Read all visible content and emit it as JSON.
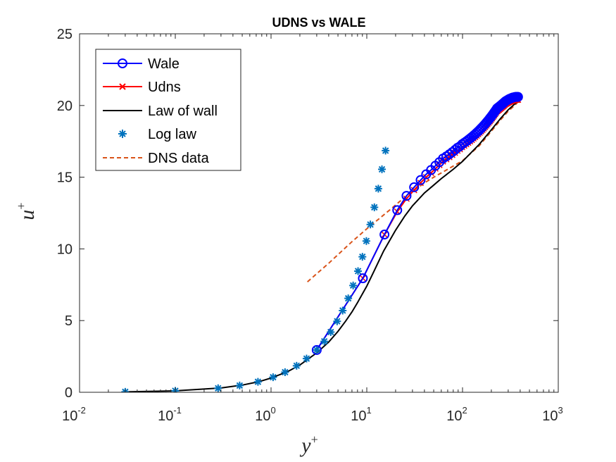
{
  "chart_data": {
    "type": "line",
    "title": "UDNS vs WALE",
    "xlabel": "y",
    "xlabel_sup": "+",
    "ylabel": "u",
    "ylabel_sup": "+",
    "xscale": "log",
    "xlim": [
      0.01,
      1000
    ],
    "ylim": [
      0,
      25
    ],
    "xticks": [
      {
        "base": "10",
        "exp": "-2",
        "value": 0.01
      },
      {
        "base": "10",
        "exp": "-1",
        "value": 0.1
      },
      {
        "base": "10",
        "exp": "0",
        "value": 1
      },
      {
        "base": "10",
        "exp": "1",
        "value": 10
      },
      {
        "base": "10",
        "exp": "2",
        "value": 100
      },
      {
        "base": "10",
        "exp": "3",
        "value": 1000
      }
    ],
    "yticks": [
      "0",
      "5",
      "10",
      "15",
      "20",
      "25"
    ],
    "grid": false,
    "legend_position": "top-left",
    "series": [
      {
        "name": "Wale",
        "style": "line-circle",
        "color": "#0000FF",
        "points": [
          [
            3.0,
            2.95
          ],
          [
            9.1,
            7.95
          ],
          [
            15.3,
            11.0
          ],
          [
            20.8,
            12.7
          ],
          [
            26.0,
            13.7
          ],
          [
            31.2,
            14.3
          ],
          [
            36.5,
            14.8
          ],
          [
            41.7,
            15.2
          ],
          [
            46.9,
            15.5
          ],
          [
            52.1,
            15.8
          ],
          [
            57.3,
            16.05
          ],
          [
            62.5,
            16.3
          ],
          [
            67.7,
            16.45
          ],
          [
            72.9,
            16.6
          ],
          [
            78.1,
            16.75
          ],
          [
            83.3,
            16.9
          ],
          [
            88.5,
            17.05
          ],
          [
            93.8,
            17.15
          ],
          [
            99.0,
            17.3
          ],
          [
            104.2,
            17.4
          ],
          [
            109.4,
            17.5
          ],
          [
            114.6,
            17.6
          ],
          [
            119.8,
            17.7
          ],
          [
            125.0,
            17.8
          ],
          [
            130.2,
            17.9
          ],
          [
            135.4,
            18.0
          ],
          [
            140.6,
            18.1
          ],
          [
            145.8,
            18.2
          ],
          [
            151.0,
            18.3
          ],
          [
            156.2,
            18.4
          ],
          [
            161.5,
            18.5
          ],
          [
            166.7,
            18.6
          ],
          [
            171.9,
            18.7
          ],
          [
            177.1,
            18.8
          ],
          [
            182.3,
            18.9
          ],
          [
            187.5,
            19.0
          ],
          [
            192.7,
            19.1
          ],
          [
            197.9,
            19.2
          ],
          [
            203.1,
            19.3
          ],
          [
            208.3,
            19.4
          ],
          [
            213.5,
            19.5
          ],
          [
            218.8,
            19.6
          ],
          [
            224.0,
            19.7
          ],
          [
            229.2,
            19.8
          ],
          [
            234.4,
            19.85
          ],
          [
            239.6,
            19.9
          ],
          [
            244.8,
            19.95
          ],
          [
            250.0,
            20.0
          ],
          [
            255.2,
            20.05
          ],
          [
            260.4,
            20.1
          ],
          [
            265.6,
            20.15
          ],
          [
            270.8,
            20.2
          ],
          [
            276.0,
            20.25
          ],
          [
            281.2,
            20.3
          ],
          [
            286.5,
            20.33
          ],
          [
            291.7,
            20.36
          ],
          [
            296.9,
            20.39
          ],
          [
            302.1,
            20.42
          ],
          [
            307.3,
            20.45
          ],
          [
            312.5,
            20.47
          ],
          [
            317.7,
            20.49
          ],
          [
            322.9,
            20.51
          ],
          [
            328.1,
            20.53
          ],
          [
            333.3,
            20.55
          ],
          [
            338.5,
            20.56
          ],
          [
            343.8,
            20.57
          ],
          [
            349.0,
            20.58
          ],
          [
            354.2,
            20.59
          ],
          [
            359.4,
            20.6
          ],
          [
            364.6,
            20.6
          ],
          [
            369.8,
            20.6
          ],
          [
            375.0,
            20.6
          ],
          [
            380.0,
            20.6
          ]
        ]
      },
      {
        "name": "Udns",
        "style": "line-x",
        "color": "#FF0000",
        "points": [
          [
            3.0,
            2.95
          ],
          [
            9.1,
            7.95
          ],
          [
            15.3,
            11.0
          ],
          [
            20.8,
            12.6
          ],
          [
            26.0,
            13.5
          ],
          [
            31.2,
            14.1
          ],
          [
            36.5,
            14.6
          ],
          [
            41.7,
            15.0
          ],
          [
            46.9,
            15.3
          ],
          [
            52.1,
            15.6
          ],
          [
            57.3,
            15.85
          ],
          [
            62.5,
            16.1
          ],
          [
            67.7,
            16.25
          ],
          [
            72.9,
            16.4
          ],
          [
            78.1,
            16.55
          ],
          [
            83.3,
            16.7
          ],
          [
            88.5,
            16.85
          ],
          [
            93.8,
            16.95
          ],
          [
            99.0,
            17.1
          ],
          [
            104.2,
            17.2
          ],
          [
            109.4,
            17.3
          ],
          [
            114.6,
            17.4
          ],
          [
            119.8,
            17.5
          ],
          [
            125.0,
            17.6
          ],
          [
            130.2,
            17.7
          ],
          [
            135.4,
            17.8
          ],
          [
            140.6,
            17.9
          ],
          [
            145.8,
            18.0
          ],
          [
            151.0,
            18.1
          ],
          [
            156.2,
            18.2
          ],
          [
            161.5,
            18.3
          ],
          [
            166.7,
            18.4
          ],
          [
            171.9,
            18.5
          ],
          [
            177.1,
            18.6
          ],
          [
            182.3,
            18.7
          ],
          [
            187.5,
            18.8
          ],
          [
            192.7,
            18.9
          ],
          [
            197.9,
            19.0
          ],
          [
            203.1,
            19.1
          ],
          [
            208.3,
            19.2
          ],
          [
            213.5,
            19.3
          ],
          [
            218.8,
            19.4
          ],
          [
            224.0,
            19.5
          ],
          [
            229.2,
            19.6
          ],
          [
            234.4,
            19.65
          ],
          [
            239.6,
            19.7
          ],
          [
            244.8,
            19.75
          ],
          [
            250.0,
            19.8
          ],
          [
            255.2,
            19.85
          ],
          [
            260.4,
            19.9
          ],
          [
            265.6,
            19.95
          ],
          [
            270.8,
            20.0
          ],
          [
            276.0,
            20.05
          ],
          [
            281.2,
            20.1
          ],
          [
            286.5,
            20.13
          ],
          [
            291.7,
            20.16
          ],
          [
            296.9,
            20.19
          ],
          [
            302.1,
            20.22
          ],
          [
            307.3,
            20.25
          ],
          [
            312.5,
            20.27
          ],
          [
            317.7,
            20.29
          ],
          [
            322.9,
            20.31
          ],
          [
            328.1,
            20.33
          ],
          [
            333.3,
            20.35
          ],
          [
            338.5,
            20.36
          ],
          [
            343.8,
            20.37
          ],
          [
            349.0,
            20.38
          ],
          [
            354.2,
            20.39
          ],
          [
            359.4,
            20.4
          ],
          [
            364.6,
            20.4
          ],
          [
            369.8,
            20.4
          ],
          [
            375.0,
            20.4
          ],
          [
            380.0,
            20.4
          ]
        ]
      },
      {
        "name": "Law of wall",
        "style": "line",
        "color": "#000000",
        "points": [
          [
            0.03,
            0.03
          ],
          [
            0.1,
            0.1
          ],
          [
            0.3,
            0.3
          ],
          [
            0.5,
            0.5
          ],
          [
            0.75,
            0.74
          ],
          [
            1.0,
            0.99
          ],
          [
            1.5,
            1.45
          ],
          [
            2.0,
            1.9
          ],
          [
            3.0,
            2.75
          ],
          [
            4.0,
            3.5
          ],
          [
            5.0,
            4.25
          ],
          [
            6.0,
            4.95
          ],
          [
            7.0,
            5.6
          ],
          [
            8.0,
            6.25
          ],
          [
            10.0,
            7.4
          ],
          [
            12.0,
            8.5
          ],
          [
            15.0,
            9.85
          ],
          [
            20.0,
            11.3
          ],
          [
            25.0,
            12.3
          ],
          [
            30.0,
            13.0
          ],
          [
            40.0,
            13.9
          ],
          [
            50.0,
            14.45
          ],
          [
            60.0,
            14.9
          ],
          [
            70.0,
            15.25
          ],
          [
            80.0,
            15.55
          ],
          [
            100.0,
            16.1
          ],
          [
            150.0,
            17.3
          ],
          [
            200.0,
            18.3
          ],
          [
            250.0,
            19.1
          ],
          [
            300.0,
            19.7
          ],
          [
            350.0,
            20.1
          ],
          [
            380.0,
            20.3
          ]
        ]
      },
      {
        "name": "Log law",
        "style": "marker-asterisk",
        "color": "#0072BD",
        "points": [
          [
            0.03,
            0.03
          ],
          [
            0.1,
            0.1
          ],
          [
            0.28,
            0.28
          ],
          [
            0.47,
            0.47
          ],
          [
            0.73,
            0.73
          ],
          [
            1.05,
            1.05
          ],
          [
            1.4,
            1.4
          ],
          [
            1.85,
            1.85
          ],
          [
            2.35,
            2.35
          ],
          [
            3.0,
            2.95
          ],
          [
            3.6,
            3.55
          ],
          [
            4.2,
            4.2
          ],
          [
            4.9,
            4.95
          ],
          [
            5.6,
            5.7
          ],
          [
            6.4,
            6.55
          ],
          [
            7.2,
            7.45
          ],
          [
            8.1,
            8.45
          ],
          [
            9.0,
            9.45
          ],
          [
            9.9,
            10.55
          ],
          [
            10.9,
            11.7
          ],
          [
            12.0,
            12.9
          ],
          [
            13.2,
            14.2
          ],
          [
            14.4,
            15.55
          ],
          [
            15.7,
            16.85
          ]
        ]
      },
      {
        "name": "DNS data",
        "style": "dashed",
        "color": "#D95319",
        "points": [
          [
            2.4,
            7.7
          ],
          [
            4.0,
            9.0
          ],
          [
            7.0,
            10.5
          ],
          [
            10.0,
            11.4
          ],
          [
            14.0,
            12.2
          ],
          [
            18.0,
            12.8
          ],
          [
            22.0,
            13.3
          ],
          [
            30.0,
            14.0
          ],
          [
            40.0,
            14.6
          ],
          [
            50.0,
            15.0
          ],
          [
            70.0,
            15.55
          ],
          [
            100.0,
            16.15
          ],
          [
            150.0,
            17.2
          ],
          [
            200.0,
            18.2
          ],
          [
            250.0,
            19.0
          ],
          [
            300.0,
            19.6
          ],
          [
            350.0,
            20.0
          ],
          [
            380.0,
            20.25
          ]
        ]
      }
    ]
  }
}
